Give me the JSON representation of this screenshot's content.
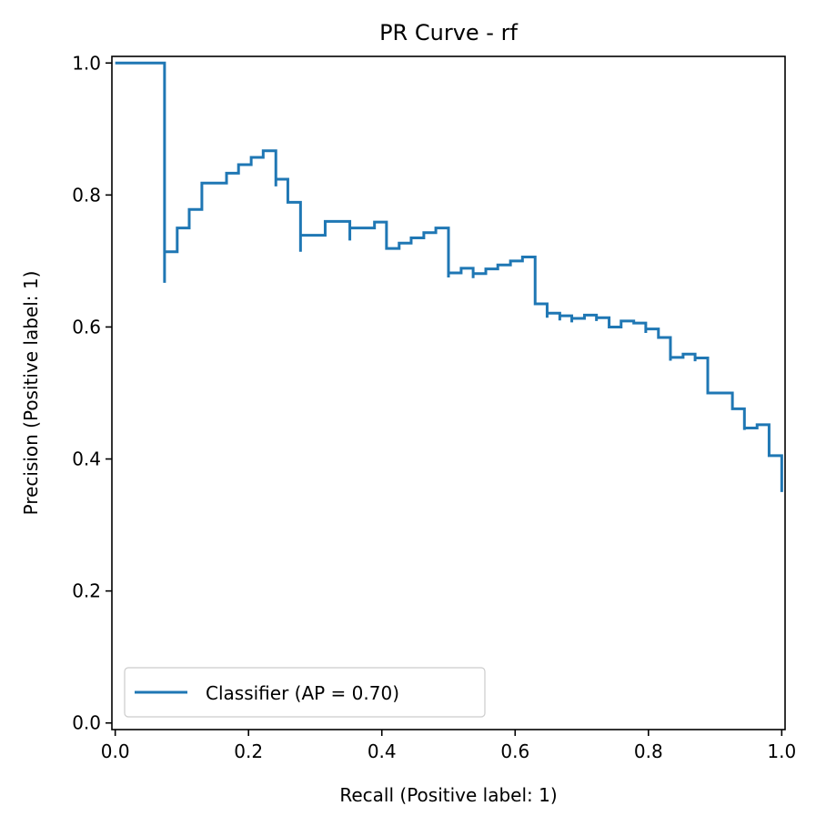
{
  "chart_data": {
    "type": "line",
    "title": "PR Curve - rf",
    "xlabel": "Recall (Positive label: 1)",
    "ylabel": "Precision (Positive label: 1)",
    "xlim": [
      -0.005,
      1.005
    ],
    "ylim": [
      -0.01,
      1.01
    ],
    "xticks": [
      0.0,
      0.2,
      0.4,
      0.6,
      0.8,
      1.0
    ],
    "xtick_labels": [
      "0.0",
      "0.2",
      "0.4",
      "0.6",
      "0.8",
      "1.0"
    ],
    "yticks": [
      0.0,
      0.2,
      0.4,
      0.6,
      0.8,
      1.0
    ],
    "ytick_labels": [
      "0.0",
      "0.2",
      "0.4",
      "0.6",
      "0.8",
      "1.0"
    ],
    "grid": false,
    "legend_position": "lower-left",
    "series": [
      {
        "name": "Classifier (AP = 0.70)",
        "color": "#1f77b4",
        "drawstyle": "steps-post",
        "points": [
          [
            0.0,
            1.0
          ],
          [
            0.074,
            1.0
          ],
          [
            0.074,
            0.667
          ],
          [
            0.074,
            0.714
          ],
          [
            0.093,
            0.714
          ],
          [
            0.093,
            0.75
          ],
          [
            0.111,
            0.75
          ],
          [
            0.111,
            0.778
          ],
          [
            0.13,
            0.778
          ],
          [
            0.13,
            0.818
          ],
          [
            0.167,
            0.818
          ],
          [
            0.167,
            0.833
          ],
          [
            0.185,
            0.833
          ],
          [
            0.185,
            0.846
          ],
          [
            0.204,
            0.846
          ],
          [
            0.204,
            0.857
          ],
          [
            0.222,
            0.857
          ],
          [
            0.222,
            0.867
          ],
          [
            0.241,
            0.867
          ],
          [
            0.241,
            0.813
          ],
          [
            0.241,
            0.824
          ],
          [
            0.259,
            0.824
          ],
          [
            0.259,
            0.789
          ],
          [
            0.278,
            0.789
          ],
          [
            0.278,
            0.714
          ],
          [
            0.278,
            0.739
          ],
          [
            0.315,
            0.739
          ],
          [
            0.315,
            0.76
          ],
          [
            0.352,
            0.76
          ],
          [
            0.352,
            0.731
          ],
          [
            0.352,
            0.75
          ],
          [
            0.389,
            0.75
          ],
          [
            0.389,
            0.759
          ],
          [
            0.407,
            0.759
          ],
          [
            0.407,
            0.719
          ],
          [
            0.426,
            0.719
          ],
          [
            0.426,
            0.727
          ],
          [
            0.444,
            0.727
          ],
          [
            0.444,
            0.735
          ],
          [
            0.463,
            0.735
          ],
          [
            0.463,
            0.743
          ],
          [
            0.481,
            0.743
          ],
          [
            0.481,
            0.75
          ],
          [
            0.5,
            0.75
          ],
          [
            0.5,
            0.675
          ],
          [
            0.5,
            0.682
          ],
          [
            0.519,
            0.682
          ],
          [
            0.519,
            0.689
          ],
          [
            0.537,
            0.689
          ],
          [
            0.537,
            0.674
          ],
          [
            0.537,
            0.681
          ],
          [
            0.556,
            0.681
          ],
          [
            0.556,
            0.688
          ],
          [
            0.574,
            0.688
          ],
          [
            0.574,
            0.694
          ],
          [
            0.593,
            0.694
          ],
          [
            0.593,
            0.7
          ],
          [
            0.611,
            0.7
          ],
          [
            0.611,
            0.706
          ],
          [
            0.63,
            0.706
          ],
          [
            0.63,
            0.635
          ],
          [
            0.648,
            0.635
          ],
          [
            0.648,
            0.614
          ],
          [
            0.648,
            0.621
          ],
          [
            0.667,
            0.621
          ],
          [
            0.667,
            0.61
          ],
          [
            0.667,
            0.617
          ],
          [
            0.685,
            0.617
          ],
          [
            0.685,
            0.607
          ],
          [
            0.685,
            0.613
          ],
          [
            0.704,
            0.613
          ],
          [
            0.704,
            0.618
          ],
          [
            0.722,
            0.618
          ],
          [
            0.722,
            0.609
          ],
          [
            0.722,
            0.614
          ],
          [
            0.741,
            0.614
          ],
          [
            0.741,
            0.6
          ],
          [
            0.759,
            0.6
          ],
          [
            0.759,
            0.609
          ],
          [
            0.778,
            0.609
          ],
          [
            0.778,
            0.606
          ],
          [
            0.796,
            0.606
          ],
          [
            0.796,
            0.591
          ],
          [
            0.796,
            0.597
          ],
          [
            0.815,
            0.597
          ],
          [
            0.815,
            0.584
          ],
          [
            0.833,
            0.584
          ],
          [
            0.833,
            0.549
          ],
          [
            0.833,
            0.554
          ],
          [
            0.852,
            0.554
          ],
          [
            0.852,
            0.559
          ],
          [
            0.87,
            0.559
          ],
          [
            0.87,
            0.548
          ],
          [
            0.87,
            0.553
          ],
          [
            0.889,
            0.553
          ],
          [
            0.889,
            0.5
          ],
          [
            0.926,
            0.5
          ],
          [
            0.926,
            0.476
          ],
          [
            0.944,
            0.476
          ],
          [
            0.944,
            0.444
          ],
          [
            0.944,
            0.447
          ],
          [
            0.963,
            0.447
          ],
          [
            0.963,
            0.452
          ],
          [
            0.981,
            0.452
          ],
          [
            0.981,
            0.405
          ],
          [
            1.0,
            0.405
          ],
          [
            1.0,
            0.35
          ]
        ]
      }
    ]
  }
}
